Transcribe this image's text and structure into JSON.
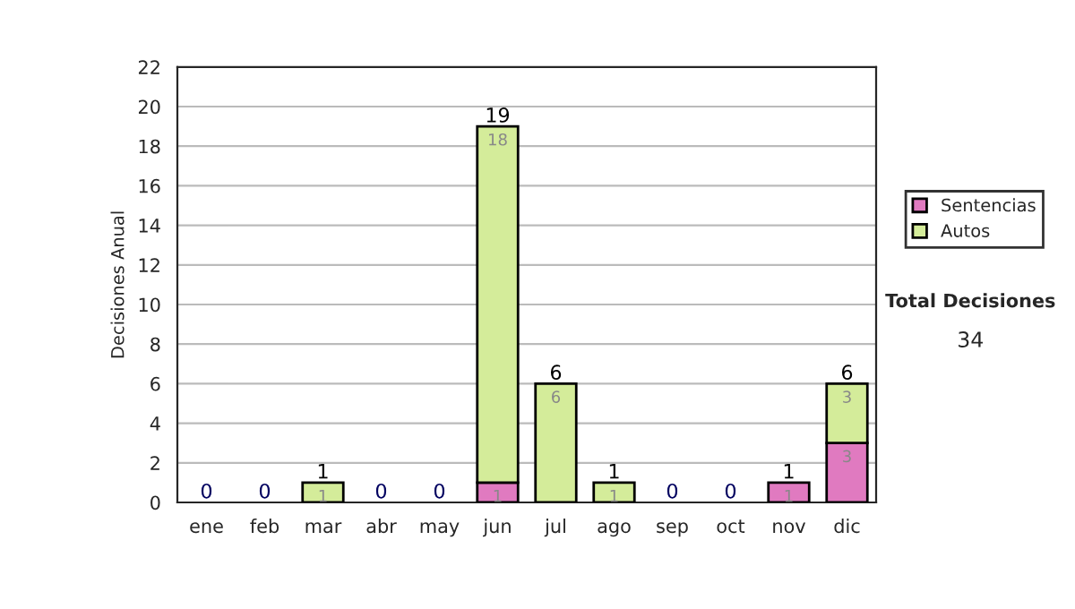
{
  "chart_data": {
    "type": "bar",
    "stacked": true,
    "ylabel": "Decisiones Anual",
    "categories": [
      "ene",
      "feb",
      "mar",
      "abr",
      "may",
      "jun",
      "jul",
      "ago",
      "sep",
      "oct",
      "nov",
      "dic"
    ],
    "series": [
      {
        "name": "Sentencias",
        "color": "#e07ac0",
        "values": [
          0,
          0,
          0,
          0,
          0,
          1,
          0,
          0,
          0,
          0,
          1,
          3
        ],
        "value_labels": [
          null,
          null,
          null,
          null,
          null,
          "1",
          null,
          null,
          null,
          null,
          "1",
          "3"
        ]
      },
      {
        "name": "Autos",
        "color": "#d4ec9a",
        "values": [
          0,
          0,
          1,
          0,
          0,
          18,
          6,
          1,
          0,
          0,
          0,
          3
        ],
        "value_labels": [
          null,
          null,
          "1",
          null,
          null,
          "18",
          "6",
          "1",
          null,
          null,
          null,
          "3"
        ]
      }
    ],
    "totals": [
      "0",
      "0",
      "1",
      "0",
      "0",
      "19",
      "6",
      "1",
      "0",
      "0",
      "1",
      "6"
    ],
    "ylim": [
      0,
      22
    ],
    "yticks": [
      0,
      2,
      4,
      6,
      8,
      10,
      12,
      14,
      16,
      18,
      20,
      22
    ],
    "grid": "y",
    "legend": "right",
    "annotations": [
      "Total Decisiones",
      "34"
    ]
  }
}
